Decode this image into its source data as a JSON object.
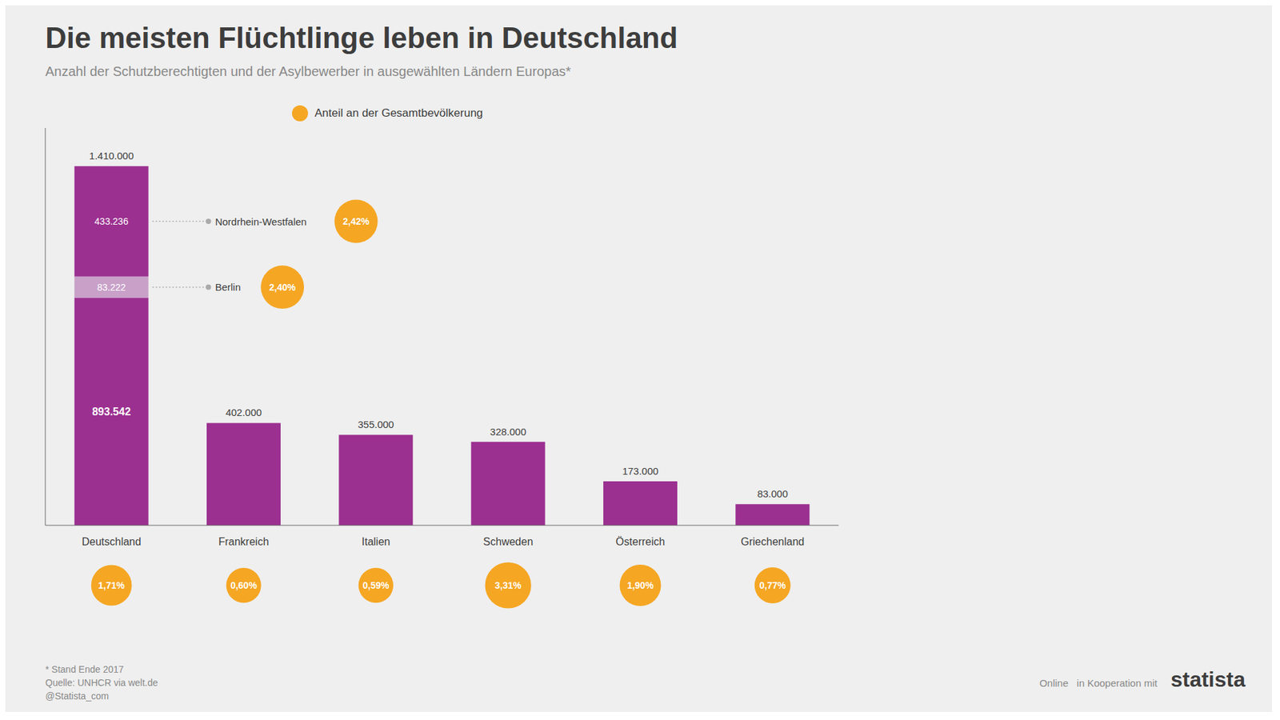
{
  "chart_data": {
    "type": "bar",
    "title": "Die meisten Flüchtlinge leben in Deutschland",
    "subtitle": "Anzahl der Schutzberechtigten und der Asylbewerber in ausgewählten Ländern Europas*",
    "categories": [
      "Deutschland",
      "Frankreich",
      "Italien",
      "Schweden",
      "Österreich",
      "Griechenland"
    ],
    "values": [
      1410000,
      402000,
      355000,
      328000,
      173000,
      83000
    ],
    "value_labels": [
      "1.410.000",
      "402.000",
      "355.000",
      "328.000",
      "173.000",
      "83.000"
    ],
    "data_labels": true,
    "color": "#9b3090",
    "segments": {
      "category": "Deutschland",
      "values": [
        893542,
        83222,
        433236
      ],
      "value_labels": [
        "893.542",
        "83.222",
        "433.236"
      ],
      "colors": [
        "#9b3090",
        "#c8a0c8",
        "#9b3090"
      ]
    },
    "annotations": [
      {
        "text": "Nordrhein-Westfalen",
        "segment": 2,
        "value": 2.42,
        "label": "2,42%"
      },
      {
        "text": "Berlin",
        "segment": 1,
        "value": 2.4,
        "label": "2,40%"
      }
    ],
    "shares": {
      "name": "Anteil an der Gesamtbevölkerung",
      "color": "#f5a623",
      "values": [
        1.71,
        0.6,
        0.59,
        3.31,
        1.9,
        0.77
      ],
      "value_labels": [
        "1,71%",
        "0,60%",
        "0,59%",
        "3,31%",
        "1,90%",
        "0,77%"
      ]
    },
    "legend": "top",
    "ylim": [
      0,
      1560000
    ],
    "grid": false,
    "tick_labels": "x",
    "notes": [
      "* Stand Ende 2017",
      "Quelle: UNHCR via welt.de",
      "@Statista_com"
    ],
    "branding": [
      "Online   in Kooperation mit",
      "statista"
    ]
  }
}
